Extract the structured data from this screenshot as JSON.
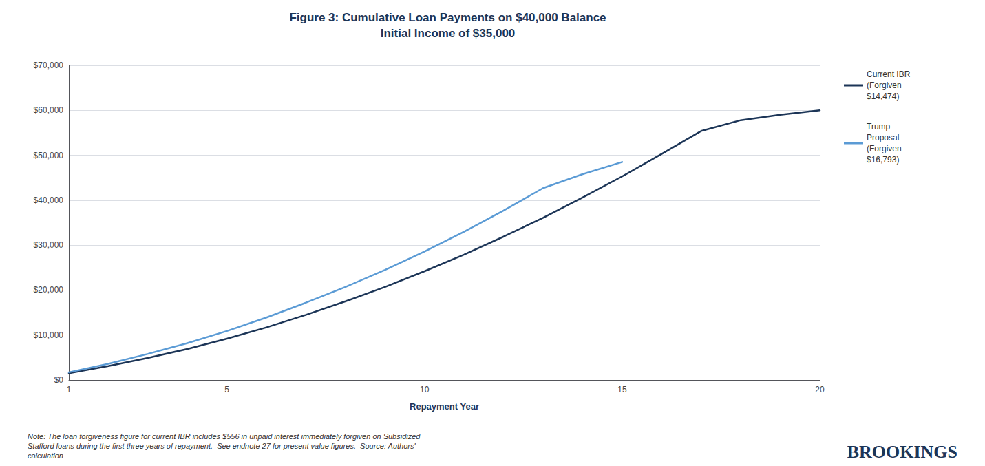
{
  "chart_data": {
    "type": "line",
    "title": "Figure 3: Cumulative Loan Payments on $40,000 Balance",
    "subtitle": "Initial Income of $35,000",
    "xlabel": "Repayment Year",
    "series": [
      {
        "name": "Current IBR\n(Forgiven\n$14,474)",
        "color": "#1c3557",
        "x": [
          1,
          2,
          3,
          4,
          5,
          6,
          7,
          8,
          9,
          10,
          11,
          12,
          13,
          14,
          15,
          16,
          17,
          18,
          19,
          20
        ],
        "values": [
          1500,
          3100,
          4900,
          6900,
          9200,
          11700,
          14500,
          17500,
          20700,
          24200,
          27900,
          31900,
          36100,
          40600,
          45300,
          50300,
          55400,
          57800,
          59000,
          60000
        ]
      },
      {
        "name": "Trump\nProposal\n(Forgiven\n$16,793)",
        "color": "#5b9bd5",
        "x": [
          1,
          2,
          3,
          4,
          5,
          6,
          7,
          8,
          9,
          10,
          11,
          12,
          13,
          14,
          15
        ],
        "values": [
          1700,
          3600,
          5800,
          8200,
          10900,
          13900,
          17200,
          20700,
          24500,
          28600,
          33000,
          37700,
          42700,
          45800,
          48500
        ]
      }
    ],
    "xlim": [
      1,
      20
    ],
    "xticks": [
      1,
      5,
      10,
      15,
      20
    ],
    "ylim": [
      0,
      70000
    ],
    "yticks": [
      {
        "value": 0,
        "label": "$0"
      },
      {
        "value": 10000,
        "label": "$10,000"
      },
      {
        "value": 20000,
        "label": "$20,000"
      },
      {
        "value": 30000,
        "label": "$30,000"
      },
      {
        "value": 40000,
        "label": "$40,000"
      },
      {
        "value": 50000,
        "label": "$50,000"
      },
      {
        "value": 60000,
        "label": "$60,000"
      },
      {
        "value": 70000,
        "label": "$70,000"
      }
    ],
    "grid": true,
    "legend": "upper right",
    "annotations": [
      "Note: The loan forgiveness figure for current IBR includes $556 in unpaid interest immediately forgiven on Subsidized\nStafford loans during the first three years of repayment.  See endnote 27 for present value figures.  Source: Authors'\ncalculation",
      "BROOKINGS"
    ]
  }
}
